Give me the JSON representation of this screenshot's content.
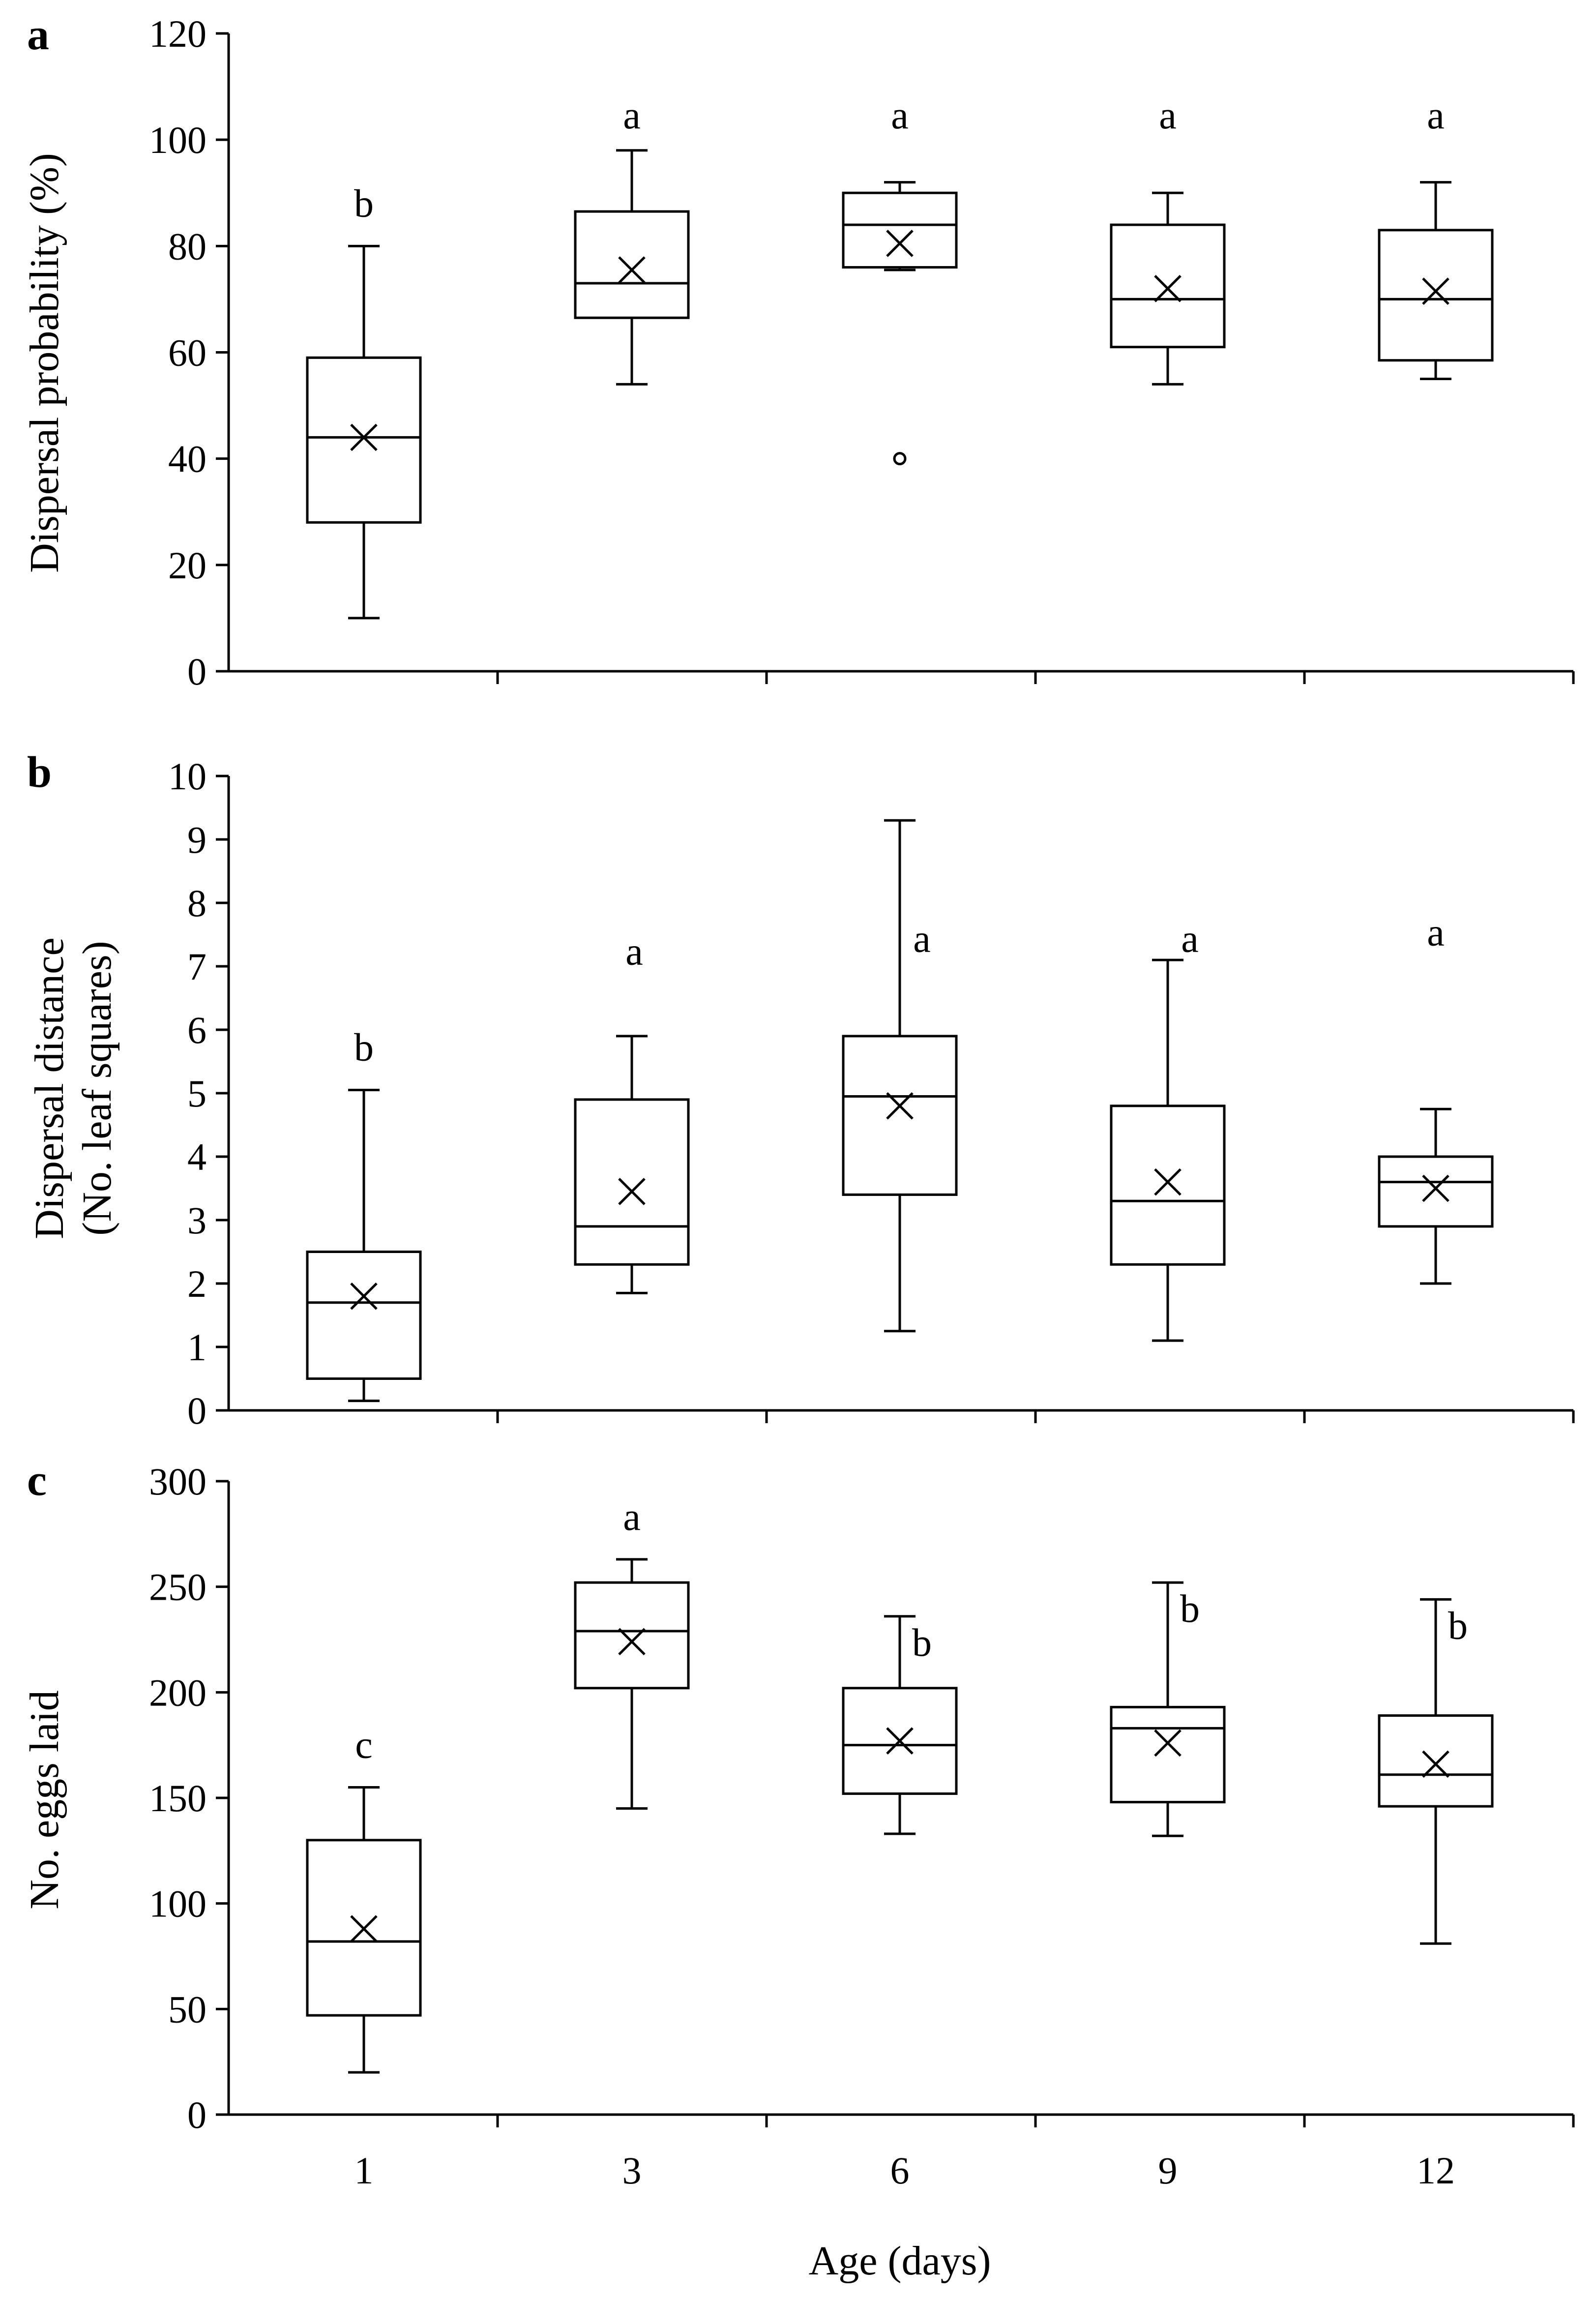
{
  "chart_data": [
    {
      "type": "box",
      "panel": "a",
      "ylabel": "Dispersal probability (%)",
      "xlabel": "",
      "ylim": [
        0,
        120
      ],
      "yticks": [
        0,
        20,
        40,
        60,
        80,
        100,
        120
      ],
      "categories": [
        "1",
        "3",
        "6",
        "9",
        "12"
      ],
      "boxes": [
        {
          "category": "1",
          "min": 10,
          "q1": 28,
          "median": 44,
          "q3": 59,
          "max": 80,
          "mean": 44,
          "outliers": [],
          "letter": "b"
        },
        {
          "category": "3",
          "min": 54,
          "q1": 66.5,
          "median": 73,
          "q3": 86.5,
          "max": 98,
          "mean": 75.5,
          "outliers": [],
          "letter": "a"
        },
        {
          "category": "6",
          "min": 75.5,
          "q1": 76,
          "median": 84,
          "q3": 90,
          "max": 92,
          "mean": 80.5,
          "outliers": [
            40
          ],
          "letter": "a"
        },
        {
          "category": "9",
          "min": 54,
          "q1": 61,
          "median": 70,
          "q3": 84,
          "max": 90,
          "mean": 72,
          "outliers": [],
          "letter": "a"
        },
        {
          "category": "12",
          "min": 55,
          "q1": 58.5,
          "median": 70,
          "q3": 83,
          "max": 92,
          "mean": 71.5,
          "outliers": [],
          "letter": "a"
        }
      ]
    },
    {
      "type": "box",
      "panel": "b",
      "ylabel": "Dispersal distance",
      "ylabel2": "(No. leaf squares)",
      "xlabel": "",
      "ylim": [
        0,
        10
      ],
      "yticks": [
        0,
        1,
        2,
        3,
        4,
        5,
        6,
        7,
        8,
        9,
        10
      ],
      "categories": [
        "1",
        "3",
        "6",
        "9",
        "12"
      ],
      "boxes": [
        {
          "category": "1",
          "min": 0.15,
          "q1": 0.5,
          "median": 1.7,
          "q3": 2.5,
          "max": 5.05,
          "mean": 1.8,
          "outliers": [],
          "letter": "b"
        },
        {
          "category": "3",
          "min": 1.85,
          "q1": 2.3,
          "median": 2.9,
          "q3": 4.9,
          "max": 5.9,
          "mean": 3.45,
          "outliers": [],
          "letter": "a"
        },
        {
          "category": "6",
          "min": 1.25,
          "q1": 3.4,
          "median": 4.95,
          "q3": 5.9,
          "max": 9.3,
          "mean": 4.8,
          "outliers": [],
          "letter": "a"
        },
        {
          "category": "9",
          "min": 1.1,
          "q1": 2.3,
          "median": 3.3,
          "q3": 4.8,
          "max": 7.1,
          "mean": 3.6,
          "outliers": [],
          "letter": "a"
        },
        {
          "category": "12",
          "min": 2.0,
          "q1": 2.9,
          "median": 3.6,
          "q3": 4.0,
          "max": 4.75,
          "mean": 3.5,
          "outliers": [],
          "letter": "a"
        }
      ]
    },
    {
      "type": "box",
      "panel": "c",
      "ylabel": "No. eggs laid",
      "xlabel": "Age (days)",
      "ylim": [
        0,
        300
      ],
      "yticks": [
        0,
        50,
        100,
        150,
        200,
        250,
        300
      ],
      "categories": [
        "1",
        "3",
        "6",
        "9",
        "12"
      ],
      "boxes": [
        {
          "category": "1",
          "min": 20,
          "q1": 47,
          "median": 82,
          "q3": 130,
          "max": 155,
          "mean": 88,
          "outliers": [],
          "letter": "c"
        },
        {
          "category": "3",
          "min": 145,
          "q1": 202,
          "median": 229,
          "q3": 252,
          "max": 263,
          "mean": 224,
          "outliers": [],
          "letter": "a"
        },
        {
          "category": "6",
          "min": 133,
          "q1": 152,
          "median": 175,
          "q3": 202,
          "max": 236,
          "mean": 177,
          "outliers": [],
          "letter": "b"
        },
        {
          "category": "9",
          "min": 132,
          "q1": 148,
          "median": 183,
          "q3": 193,
          "max": 252,
          "mean": 176,
          "outliers": [],
          "letter": "b"
        },
        {
          "category": "12",
          "min": 81,
          "q1": 146,
          "median": 161,
          "q3": 189,
          "max": 244,
          "mean": 166,
          "outliers": [],
          "letter": "b"
        }
      ]
    }
  ]
}
